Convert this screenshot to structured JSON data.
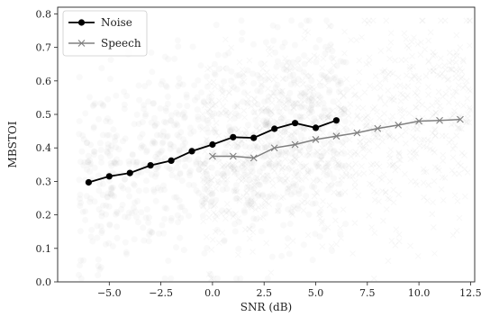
{
  "chart_data": {
    "type": "line",
    "xlabel": "SNR (dB)",
    "ylabel": "MBSTOI",
    "xlim": [
      -7.5,
      12.7
    ],
    "ylim": [
      0.0,
      0.82
    ],
    "xticks": [
      -5.0,
      -2.5,
      0.0,
      2.5,
      5.0,
      7.5,
      10.0,
      12.5
    ],
    "xtick_labels": [
      "−5.0",
      "−2.5",
      "0.0",
      "2.5",
      "5.0",
      "7.5",
      "10.0",
      "12.5"
    ],
    "yticks": [
      0.0,
      0.1,
      0.2,
      0.3,
      0.4,
      0.5,
      0.6,
      0.7,
      0.8
    ],
    "ytick_labels": [
      "0.0",
      "0.1",
      "0.2",
      "0.3",
      "0.4",
      "0.5",
      "0.6",
      "0.7",
      "0.8"
    ],
    "grid": false,
    "legend_position": "upper left",
    "series": [
      {
        "name": "Noise",
        "color": "#000000",
        "marker": "circle",
        "x": [
          -6,
          -5,
          -4,
          -3,
          -2,
          -1,
          0,
          1,
          2,
          3,
          4,
          5,
          6
        ],
        "y": [
          0.297,
          0.315,
          0.325,
          0.348,
          0.362,
          0.39,
          0.41,
          0.432,
          0.43,
          0.457,
          0.474,
          0.46,
          0.482
        ]
      },
      {
        "name": "Speech",
        "color": "#808080",
        "marker": "x",
        "x": [
          0,
          1,
          2,
          3,
          4,
          5,
          6,
          7,
          8,
          9,
          10,
          11,
          12
        ],
        "y": [
          0.375,
          0.375,
          0.37,
          0.4,
          0.41,
          0.425,
          0.435,
          0.445,
          0.458,
          0.468,
          0.48,
          0.482,
          0.485
        ]
      }
    ],
    "background_scatter": {
      "description_color": "#999999",
      "noise_x_range": [
        -6.5,
        6.5
      ],
      "speech_x_range": [
        -0.5,
        12.5
      ],
      "y_range": [
        0.0,
        0.78
      ]
    }
  }
}
